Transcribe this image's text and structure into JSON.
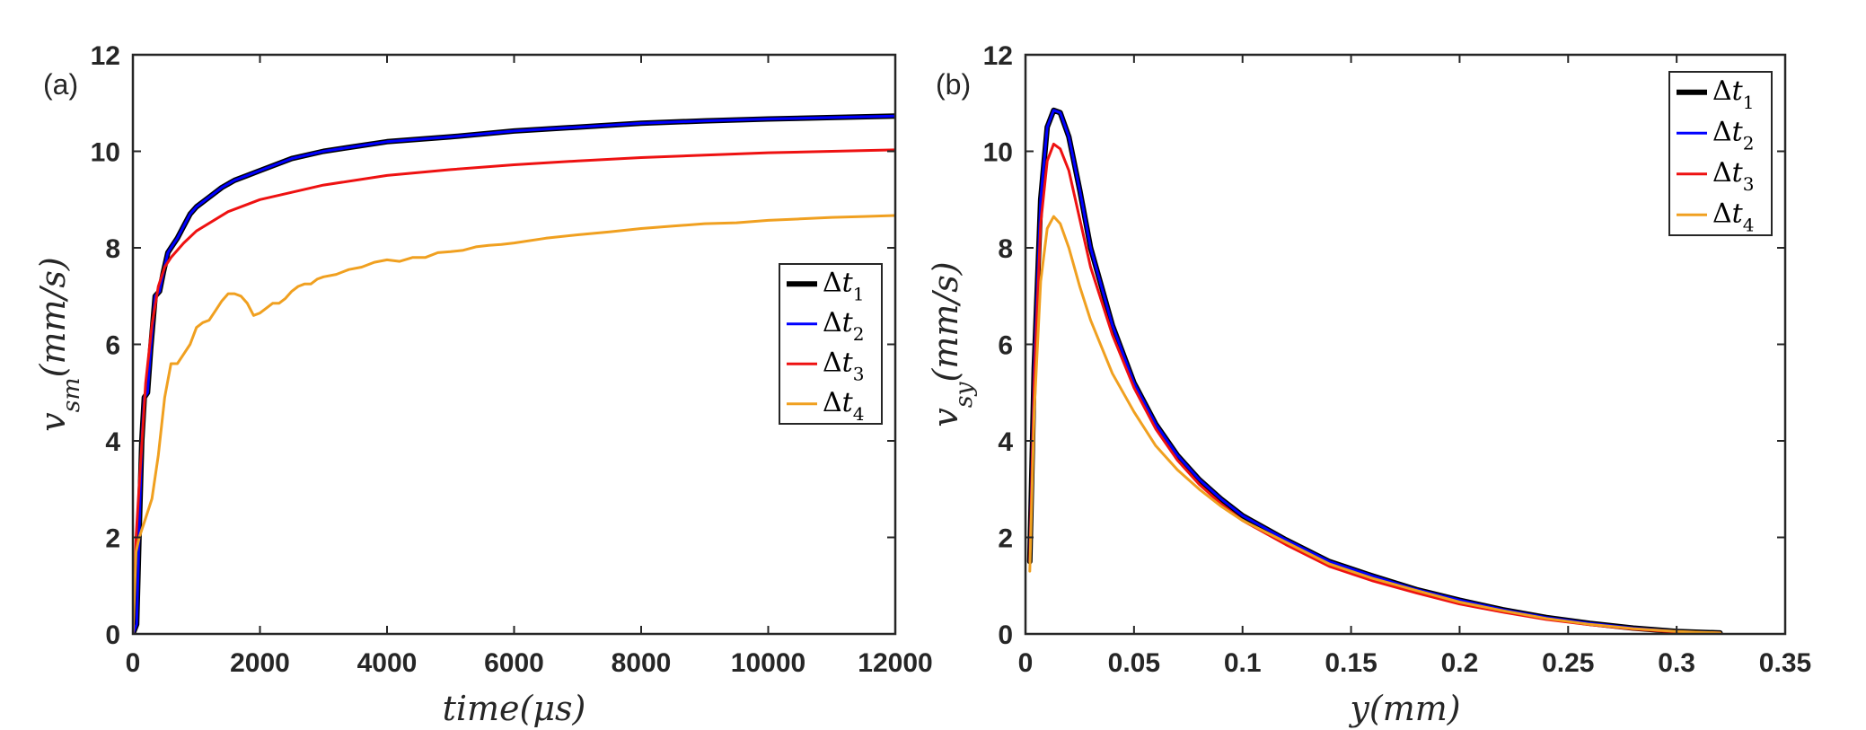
{
  "chart_data": [
    {
      "type": "line",
      "panel_label": "(a)",
      "xlabel": "time(μs)",
      "ylabel": "v_{sm}(mm/s)",
      "xlim": [
        0,
        12000
      ],
      "ylim": [
        0,
        12
      ],
      "xticks": [
        "0",
        "2000",
        "4000",
        "6000",
        "8000",
        "10000",
        "12000"
      ],
      "yticks": [
        "0",
        "2",
        "4",
        "6",
        "8",
        "10",
        "12"
      ],
      "grid": false,
      "legend_position": "center-right",
      "series": [
        {
          "name": "Δt1",
          "color": "#000000",
          "x": [
            0,
            60,
            100,
            140,
            180,
            230,
            280,
            350,
            420,
            480,
            550,
            600,
            700,
            800,
            900,
            1000,
            1200,
            1400,
            1600,
            1800,
            2000,
            2500,
            3000,
            3500,
            4000,
            5000,
            6000,
            7000,
            8000,
            9000,
            10000,
            11000,
            12000
          ],
          "y": [
            0,
            0.2,
            2.2,
            4.0,
            4.9,
            5.0,
            5.9,
            7.0,
            7.1,
            7.5,
            7.9,
            8.0,
            8.2,
            8.45,
            8.7,
            8.85,
            9.05,
            9.25,
            9.4,
            9.5,
            9.6,
            9.85,
            10.0,
            10.1,
            10.2,
            10.3,
            10.42,
            10.5,
            10.58,
            10.63,
            10.67,
            10.7,
            10.73
          ]
        },
        {
          "name": "Δt2",
          "color": "#0000ff",
          "x": [
            0,
            60,
            100,
            140,
            180,
            230,
            280,
            350,
            420,
            480,
            550,
            600,
            700,
            800,
            900,
            1000,
            1200,
            1400,
            1600,
            1800,
            2000,
            2500,
            3000,
            3500,
            4000,
            5000,
            6000,
            7000,
            8000,
            9000,
            10000,
            11000,
            12000
          ],
          "y": [
            0,
            0.2,
            2.2,
            4.0,
            4.9,
            5.0,
            5.9,
            7.0,
            7.1,
            7.5,
            7.9,
            8.0,
            8.2,
            8.45,
            8.7,
            8.85,
            9.05,
            9.25,
            9.4,
            9.5,
            9.6,
            9.85,
            10.0,
            10.1,
            10.2,
            10.3,
            10.42,
            10.5,
            10.58,
            10.63,
            10.67,
            10.7,
            10.73
          ]
        },
        {
          "name": "Δt3",
          "color": "#ee1111",
          "x": [
            0,
            50,
            100,
            200,
            300,
            400,
            500,
            600,
            800,
            1000,
            1500,
            2000,
            3000,
            4000,
            5000,
            6000,
            7000,
            8000,
            9000,
            10000,
            11000,
            12000
          ],
          "y": [
            0,
            2.0,
            3.1,
            5.2,
            6.4,
            7.2,
            7.6,
            7.8,
            8.1,
            8.35,
            8.75,
            9.0,
            9.3,
            9.5,
            9.62,
            9.72,
            9.8,
            9.87,
            9.92,
            9.97,
            10.0,
            10.03
          ]
        },
        {
          "name": "Δt4",
          "color": "#f0a020",
          "x": [
            0,
            50,
            100,
            200,
            300,
            400,
            500,
            600,
            700,
            800,
            900,
            1000,
            1100,
            1200,
            1300,
            1400,
            1500,
            1600,
            1700,
            1800,
            1900,
            2000,
            2100,
            2200,
            2300,
            2400,
            2500,
            2600,
            2700,
            2800,
            2900,
            3000,
            3200,
            3400,
            3600,
            3800,
            4000,
            4200,
            4400,
            4600,
            4800,
            5000,
            5200,
            5400,
            5600,
            5800,
            6000,
            6500,
            7000,
            7500,
            8000,
            8500,
            9000,
            9500,
            10000,
            10500,
            11000,
            11500,
            12000
          ],
          "y": [
            0,
            1.7,
            2.0,
            2.4,
            2.8,
            3.7,
            4.9,
            5.6,
            5.6,
            5.8,
            6.0,
            6.35,
            6.45,
            6.5,
            6.7,
            6.9,
            7.05,
            7.05,
            7.0,
            6.85,
            6.6,
            6.65,
            6.75,
            6.85,
            6.85,
            6.95,
            7.1,
            7.2,
            7.25,
            7.25,
            7.35,
            7.4,
            7.45,
            7.55,
            7.6,
            7.7,
            7.75,
            7.72,
            7.8,
            7.8,
            7.9,
            7.92,
            7.95,
            8.02,
            8.05,
            8.07,
            8.1,
            8.2,
            8.27,
            8.33,
            8.4,
            8.45,
            8.5,
            8.52,
            8.57,
            8.6,
            8.63,
            8.65,
            8.67
          ]
        }
      ]
    },
    {
      "type": "line",
      "panel_label": "(b)",
      "xlabel": "y(mm)",
      "ylabel": "v_{sy}(mm/s)",
      "xlim": [
        0,
        0.35
      ],
      "ylim": [
        0,
        12
      ],
      "xticks": [
        "0",
        "0.05",
        "0.1",
        "0.15",
        "0.2",
        "0.25",
        "0.3",
        "0.35"
      ],
      "yticks": [
        "0",
        "2",
        "4",
        "6",
        "8",
        "10",
        "12"
      ],
      "grid": false,
      "legend_position": "top-right",
      "series": [
        {
          "name": "Δt1",
          "color": "#000000",
          "x": [
            0.002,
            0.004,
            0.007,
            0.01,
            0.013,
            0.016,
            0.02,
            0.025,
            0.03,
            0.04,
            0.05,
            0.06,
            0.07,
            0.08,
            0.09,
            0.1,
            0.12,
            0.14,
            0.16,
            0.18,
            0.2,
            0.22,
            0.24,
            0.26,
            0.28,
            0.3,
            0.32
          ],
          "y": [
            1.5,
            5.5,
            9.0,
            10.5,
            10.85,
            10.8,
            10.3,
            9.2,
            8.0,
            6.4,
            5.2,
            4.35,
            3.7,
            3.2,
            2.8,
            2.45,
            1.95,
            1.5,
            1.2,
            0.92,
            0.7,
            0.5,
            0.34,
            0.22,
            0.12,
            0.05,
            0.02
          ]
        },
        {
          "name": "Δt2",
          "color": "#0000ff",
          "x": [
            0.002,
            0.004,
            0.007,
            0.01,
            0.013,
            0.016,
            0.02,
            0.025,
            0.03,
            0.04,
            0.05,
            0.06,
            0.07,
            0.08,
            0.09,
            0.1,
            0.12,
            0.14,
            0.16,
            0.18,
            0.2,
            0.22,
            0.24,
            0.26,
            0.28,
            0.3,
            0.32
          ],
          "y": [
            1.5,
            5.5,
            9.0,
            10.5,
            10.85,
            10.8,
            10.3,
            9.2,
            8.0,
            6.4,
            5.2,
            4.35,
            3.7,
            3.2,
            2.8,
            2.45,
            1.95,
            1.5,
            1.2,
            0.92,
            0.7,
            0.5,
            0.34,
            0.22,
            0.12,
            0.05,
            0.02
          ]
        },
        {
          "name": "Δt3",
          "color": "#ee1111",
          "x": [
            0.002,
            0.004,
            0.007,
            0.01,
            0.013,
            0.016,
            0.02,
            0.025,
            0.03,
            0.04,
            0.05,
            0.06,
            0.07,
            0.08,
            0.09,
            0.1,
            0.12,
            0.14,
            0.16,
            0.18,
            0.2,
            0.22,
            0.24,
            0.26,
            0.28,
            0.3,
            0.32
          ],
          "y": [
            1.5,
            5.2,
            8.5,
            9.8,
            10.15,
            10.05,
            9.6,
            8.6,
            7.6,
            6.2,
            5.1,
            4.25,
            3.6,
            3.1,
            2.7,
            2.35,
            1.85,
            1.4,
            1.1,
            0.85,
            0.62,
            0.45,
            0.3,
            0.19,
            0.1,
            0.04,
            0.02
          ]
        },
        {
          "name": "Δt4",
          "color": "#f0a020",
          "x": [
            0.002,
            0.004,
            0.007,
            0.01,
            0.013,
            0.016,
            0.02,
            0.025,
            0.03,
            0.04,
            0.05,
            0.06,
            0.07,
            0.08,
            0.09,
            0.1,
            0.12,
            0.14,
            0.16,
            0.18,
            0.2,
            0.22,
            0.24,
            0.26,
            0.28,
            0.3,
            0.32
          ],
          "y": [
            1.3,
            4.6,
            7.3,
            8.4,
            8.65,
            8.5,
            8.0,
            7.2,
            6.5,
            5.4,
            4.6,
            3.9,
            3.4,
            3.0,
            2.65,
            2.35,
            1.9,
            1.45,
            1.15,
            0.9,
            0.66,
            0.48,
            0.32,
            0.2,
            0.11,
            0.05,
            0.02
          ]
        }
      ]
    }
  ]
}
